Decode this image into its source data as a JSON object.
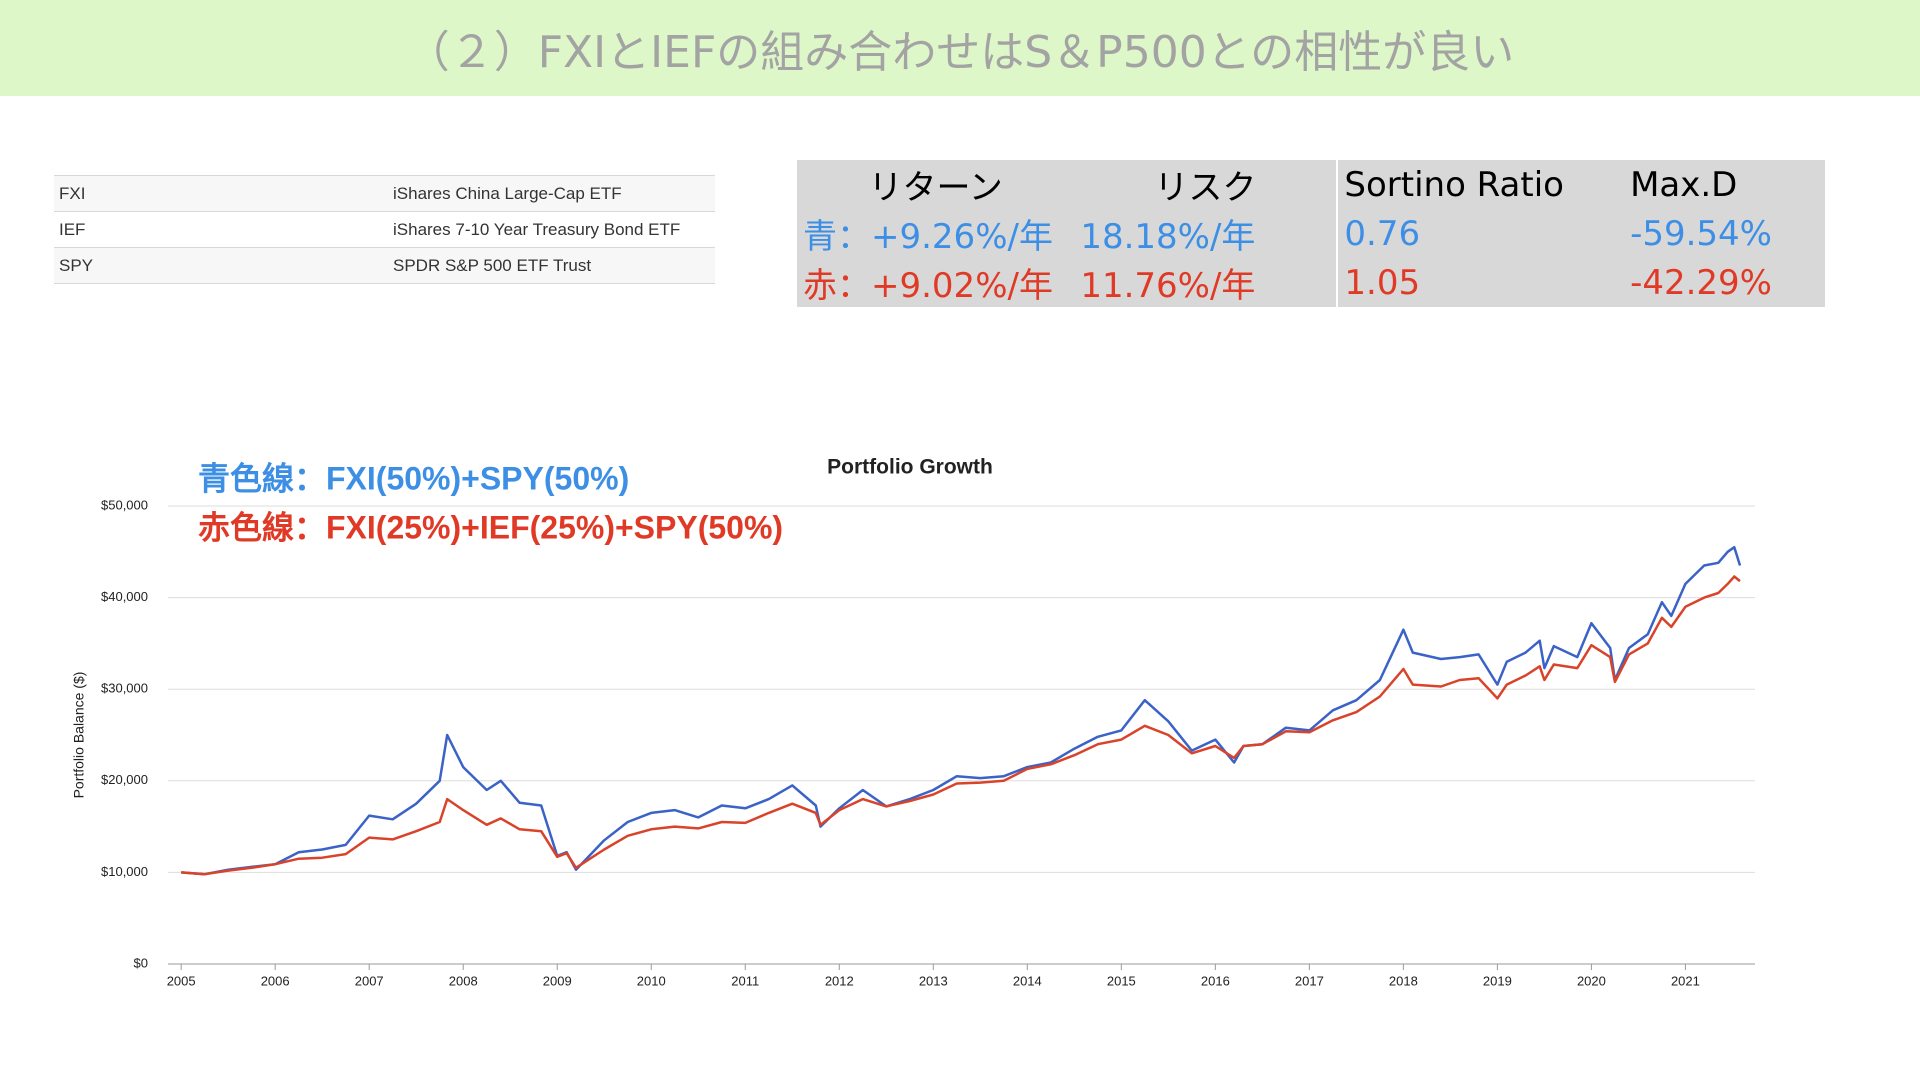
{
  "header": {
    "title": "（２）FXIとIEFの組み合わせはS＆P500との相性が良い"
  },
  "tickers": {
    "rows": [
      [
        "FXI",
        "iShares China Large-Cap ETF"
      ],
      [
        "IEF",
        "iShares 7-10 Year Treasury Bond ETF"
      ],
      [
        "SPY",
        "SPDR S&P 500 ETF Trust"
      ]
    ]
  },
  "stats": {
    "headers": [
      "リターン",
      "リスク",
      "Sortino Ratio",
      "Max.D"
    ],
    "rows": [
      {
        "color": "#3d8fe6",
        "cells": [
          "青：+9.26%/年",
          "18.18%/年",
          "0.76",
          "-59.54%"
        ]
      },
      {
        "color": "#e03a26",
        "cells": [
          "赤：+9.02%/年",
          "11.76%/年",
          "1.05",
          "-42.29%"
        ]
      }
    ]
  },
  "chart_data": {
    "type": "line",
    "title": "Portfolio Growth",
    "y_label": "Portfolio Balance ($)",
    "x": [
      2005.0,
      2005.25,
      2005.5,
      2005.75,
      2006.0,
      2006.25,
      2006.5,
      2006.75,
      2007.0,
      2007.25,
      2007.5,
      2007.75,
      2007.83,
      2008.0,
      2008.25,
      2008.4,
      2008.6,
      2008.83,
      2009.0,
      2009.1,
      2009.2,
      2009.5,
      2009.75,
      2010.0,
      2010.25,
      2010.5,
      2010.75,
      2011.0,
      2011.25,
      2011.5,
      2011.75,
      2011.8,
      2012.0,
      2012.25,
      2012.5,
      2012.75,
      2013.0,
      2013.25,
      2013.5,
      2013.75,
      2014.0,
      2014.25,
      2014.5,
      2014.75,
      2015.0,
      2015.25,
      2015.5,
      2015.75,
      2016.0,
      2016.2,
      2016.3,
      2016.5,
      2016.75,
      2017.0,
      2017.25,
      2017.5,
      2017.75,
      2018.0,
      2018.1,
      2018.4,
      2018.6,
      2018.8,
      2019.0,
      2019.1,
      2019.3,
      2019.45,
      2019.5,
      2019.6,
      2019.85,
      2020.0,
      2020.2,
      2020.25,
      2020.4,
      2020.6,
      2020.75,
      2020.85,
      2021.0,
      2021.2,
      2021.35,
      2021.45,
      2021.52,
      2021.58
    ],
    "series": [
      {
        "name": "青色線：FXI(50%)+SPY(50%)",
        "color": "#3a62c7",
        "label_color": "#3d8fe6",
        "values": [
          10000,
          9800,
          10300,
          10600,
          10900,
          12200,
          12500,
          13000,
          16200,
          15800,
          17500,
          20000,
          25000,
          21500,
          19000,
          20000,
          17600,
          17300,
          11800,
          12200,
          10300,
          13500,
          15500,
          16500,
          16800,
          16000,
          17300,
          17000,
          18000,
          19500,
          17300,
          15000,
          17000,
          19000,
          17200,
          18000,
          19000,
          20500,
          20300,
          20500,
          21500,
          22000,
          23500,
          24800,
          25500,
          28800,
          26500,
          23300,
          24500,
          22000,
          23800,
          24000,
          25800,
          25500,
          27700,
          28800,
          31000,
          36500,
          34000,
          33300,
          33500,
          33800,
          30500,
          33000,
          34000,
          35300,
          32300,
          34700,
          33500,
          37200,
          34500,
          31000,
          34500,
          36000,
          39500,
          38000,
          41500,
          43500,
          43800,
          45000,
          45500,
          43500
        ]
      },
      {
        "name": "赤色線：FXI(25%)+IEF(25%)+SPY(50%)",
        "color": "#d9432a",
        "label_color": "#e03a26",
        "values": [
          10000,
          9800,
          10200,
          10500,
          10900,
          11500,
          11600,
          12000,
          13800,
          13600,
          14500,
          15500,
          18000,
          16800,
          15200,
          15900,
          14700,
          14500,
          11700,
          12100,
          10500,
          12500,
          14000,
          14700,
          15000,
          14800,
          15500,
          15400,
          16500,
          17500,
          16500,
          15200,
          16800,
          18000,
          17200,
          17800,
          18500,
          19700,
          19800,
          20000,
          21300,
          21800,
          22800,
          24000,
          24500,
          26000,
          25000,
          23000,
          23800,
          22500,
          23800,
          24000,
          25400,
          25300,
          26600,
          27500,
          29200,
          32200,
          30500,
          30300,
          31000,
          31200,
          29000,
          30500,
          31500,
          32500,
          31000,
          32700,
          32300,
          34800,
          33500,
          30800,
          33800,
          35000,
          37800,
          36800,
          39000,
          40000,
          40500,
          41500,
          42300,
          41800
        ]
      }
    ],
    "xlim": [
      2004.86,
      2021.74
    ],
    "xticks": [
      2005,
      2006,
      2007,
      2008,
      2009,
      2010,
      2011,
      2012,
      2013,
      2014,
      2015,
      2016,
      2017,
      2018,
      2019,
      2020,
      2021
    ],
    "ylim": [
      0,
      50000
    ],
    "yticks": [
      {
        "value": 0,
        "label": "$0"
      },
      {
        "value": 10000,
        "label": "$10,000"
      },
      {
        "value": 20000,
        "label": "$20,000"
      },
      {
        "value": 30000,
        "label": "$30,000"
      },
      {
        "value": 40000,
        "label": "$40,000"
      },
      {
        "value": 50000,
        "label": "$50,000"
      }
    ],
    "grid": true
  }
}
